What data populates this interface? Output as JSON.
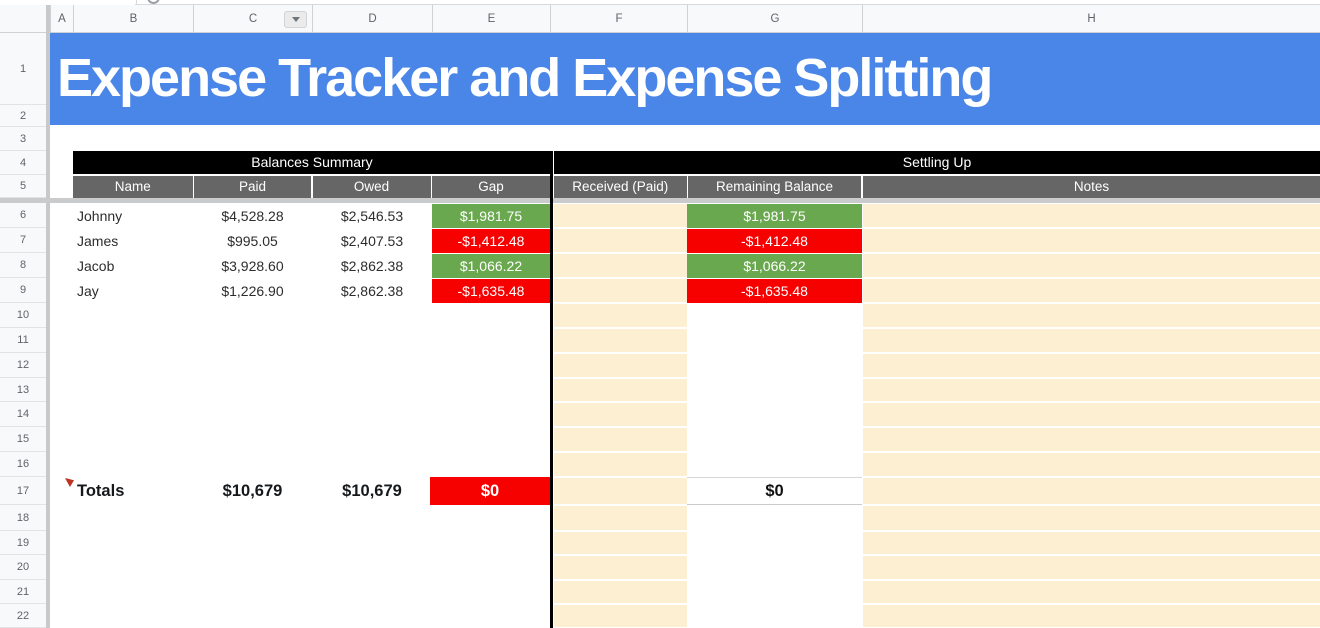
{
  "sheet": {
    "column_letters": [
      "A",
      "B",
      "C",
      "D",
      "E",
      "F",
      "G",
      "H"
    ],
    "row_numbers": [
      "1",
      "2",
      "3",
      "4",
      "5",
      "6",
      "7",
      "8",
      "9",
      "10",
      "11",
      "12",
      "13",
      "14",
      "15",
      "16",
      "17",
      "18",
      "19",
      "20",
      "21",
      "22"
    ],
    "title": "Expense Tracker and Expense Splitting",
    "section_headers": {
      "left": "Balances Summary",
      "right": "Settling Up"
    },
    "column_headers": {
      "name": "Name",
      "paid": "Paid",
      "owed": "Owed",
      "gap": "Gap",
      "received": "Received (Paid)",
      "remaining": "Remaining Balance",
      "notes": "Notes"
    },
    "rows": [
      {
        "name": "Johnny",
        "paid": "$4,528.28",
        "owed": "$2,546.53",
        "gap": "$1,981.75",
        "gap_state": "positive",
        "received": "",
        "remaining": "$1,981.75",
        "remaining_state": "positive",
        "notes": ""
      },
      {
        "name": "James",
        "paid": "$995.05",
        "owed": "$2,407.53",
        "gap": "-$1,412.48",
        "gap_state": "negative",
        "received": "",
        "remaining": "-$1,412.48",
        "remaining_state": "negative",
        "notes": ""
      },
      {
        "name": "Jacob",
        "paid": "$3,928.60",
        "owed": "$2,862.38",
        "gap": "$1,066.22",
        "gap_state": "positive",
        "received": "",
        "remaining": "$1,066.22",
        "remaining_state": "positive",
        "notes": ""
      },
      {
        "name": "Jay",
        "paid": "$1,226.90",
        "owed": "$2,862.38",
        "gap": "-$1,635.48",
        "gap_state": "negative",
        "received": "",
        "remaining": "-$1,635.48",
        "remaining_state": "negative",
        "notes": ""
      }
    ],
    "totals": {
      "label": "Totals",
      "paid": "$10,679",
      "owed": "$10,679",
      "gap": "$0",
      "gap_state": "negative",
      "remaining": "$0"
    }
  },
  "icons": {
    "column_c_dropdown": "chevron-down"
  },
  "colors": {
    "banner_blue": "#4a86e8",
    "section_header_black": "#000000",
    "column_header_gray": "#666666",
    "positive_green": "#6aa84f",
    "negative_red": "#f60000",
    "accent_cream": "#fcefd2"
  }
}
